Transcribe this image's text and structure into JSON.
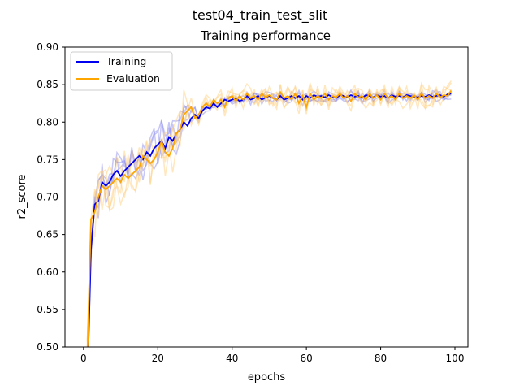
{
  "chart_data": {
    "type": "line",
    "suptitle": "test04_train_test_slit",
    "title": "Training performance",
    "xlabel": "epochs",
    "ylabel": "r2_score",
    "xlim": [
      -5,
      103.5
    ],
    "ylim": [
      0.5,
      0.9
    ],
    "xticks": [
      0,
      20,
      40,
      60,
      80,
      100
    ],
    "yticks": [
      0.5,
      0.55,
      0.6,
      0.65,
      0.7,
      0.75,
      0.8,
      0.85,
      0.9
    ],
    "grid": false,
    "legend": {
      "placement": "top-left",
      "entries": [
        "Training",
        "Evaluation"
      ]
    },
    "colors": {
      "training": "#0000ee",
      "evaluation": "#ffa500",
      "training_faint": "#8080ee",
      "evaluation_faint": "#ffd080"
    },
    "series": [
      {
        "name": "Training",
        "x": [
          1,
          2,
          3,
          4,
          5,
          6,
          7,
          8,
          9,
          10,
          11,
          12,
          13,
          14,
          15,
          16,
          17,
          18,
          19,
          20,
          21,
          22,
          23,
          24,
          25,
          26,
          27,
          28,
          29,
          30,
          31,
          32,
          33,
          34,
          35,
          36,
          37,
          38,
          39,
          40,
          41,
          42,
          43,
          44,
          45,
          46,
          47,
          48,
          49,
          50,
          51,
          52,
          53,
          54,
          55,
          56,
          57,
          58,
          59,
          60,
          61,
          62,
          63,
          64,
          65,
          66,
          67,
          68,
          69,
          70,
          71,
          72,
          73,
          74,
          75,
          76,
          77,
          78,
          79,
          80,
          81,
          82,
          83,
          84,
          85,
          86,
          87,
          88,
          89,
          90,
          91,
          92,
          93,
          94,
          95,
          96,
          97,
          98,
          99
        ],
        "values": [
          0.44,
          0.63,
          0.69,
          0.695,
          0.72,
          0.715,
          0.72,
          0.73,
          0.735,
          0.728,
          0.735,
          0.74,
          0.745,
          0.75,
          0.755,
          0.75,
          0.76,
          0.755,
          0.765,
          0.77,
          0.775,
          0.765,
          0.78,
          0.775,
          0.785,
          0.79,
          0.8,
          0.795,
          0.805,
          0.81,
          0.805,
          0.815,
          0.82,
          0.818,
          0.825,
          0.82,
          0.825,
          0.83,
          0.828,
          0.83,
          0.832,
          0.828,
          0.83,
          0.835,
          0.83,
          0.832,
          0.835,
          0.83,
          0.833,
          0.835,
          0.832,
          0.83,
          0.835,
          0.83,
          0.832,
          0.835,
          0.832,
          0.835,
          0.83,
          0.835,
          0.832,
          0.836,
          0.834,
          0.835,
          0.833,
          0.836,
          0.834,
          0.832,
          0.836,
          0.835,
          0.833,
          0.836,
          0.834,
          0.835,
          0.832,
          0.836,
          0.835,
          0.833,
          0.836,
          0.834,
          0.835,
          0.832,
          0.836,
          0.834,
          0.835,
          0.833,
          0.836,
          0.835,
          0.834,
          0.833,
          0.835,
          0.834,
          0.836,
          0.834,
          0.835,
          0.836,
          0.834,
          0.837,
          0.838
        ]
      },
      {
        "name": "Evaluation",
        "x": [
          1,
          2,
          3,
          4,
          5,
          6,
          7,
          8,
          9,
          10,
          11,
          12,
          13,
          14,
          15,
          16,
          17,
          18,
          19,
          20,
          21,
          22,
          23,
          24,
          25,
          26,
          27,
          28,
          29,
          30,
          31,
          32,
          33,
          34,
          35,
          36,
          37,
          38,
          39,
          40,
          41,
          42,
          43,
          44,
          45,
          46,
          47,
          48,
          49,
          50,
          51,
          52,
          53,
          54,
          55,
          56,
          57,
          58,
          59,
          60,
          61,
          62,
          63,
          64,
          65,
          66,
          67,
          68,
          69,
          70,
          71,
          72,
          73,
          74,
          75,
          76,
          77,
          78,
          79,
          80,
          81,
          82,
          83,
          84,
          85,
          86,
          87,
          88,
          89,
          90,
          91,
          92,
          93,
          94,
          95,
          96,
          97,
          98,
          99
        ],
        "values": [
          0.48,
          0.67,
          0.68,
          0.7,
          0.715,
          0.71,
          0.715,
          0.72,
          0.725,
          0.72,
          0.73,
          0.725,
          0.73,
          0.735,
          0.74,
          0.755,
          0.75,
          0.745,
          0.75,
          0.76,
          0.775,
          0.76,
          0.755,
          0.765,
          0.785,
          0.79,
          0.81,
          0.815,
          0.82,
          0.805,
          0.81,
          0.82,
          0.825,
          0.82,
          0.83,
          0.825,
          0.83,
          0.82,
          0.832,
          0.835,
          0.828,
          0.835,
          0.83,
          0.838,
          0.832,
          0.835,
          0.83,
          0.838,
          0.833,
          0.836,
          0.832,
          0.83,
          0.84,
          0.832,
          0.835,
          0.83,
          0.838,
          0.825,
          0.835,
          0.82,
          0.838,
          0.83,
          0.835,
          0.832,
          0.838,
          0.83,
          0.835,
          0.833,
          0.838,
          0.832,
          0.835,
          0.828,
          0.838,
          0.833,
          0.835,
          0.83,
          0.838,
          0.832,
          0.836,
          0.83,
          0.838,
          0.832,
          0.835,
          0.83,
          0.838,
          0.832,
          0.835,
          0.832,
          0.836,
          0.83,
          0.838,
          0.832,
          0.835,
          0.832,
          0.838,
          0.833,
          0.836,
          0.835,
          0.842
        ]
      }
    ]
  }
}
